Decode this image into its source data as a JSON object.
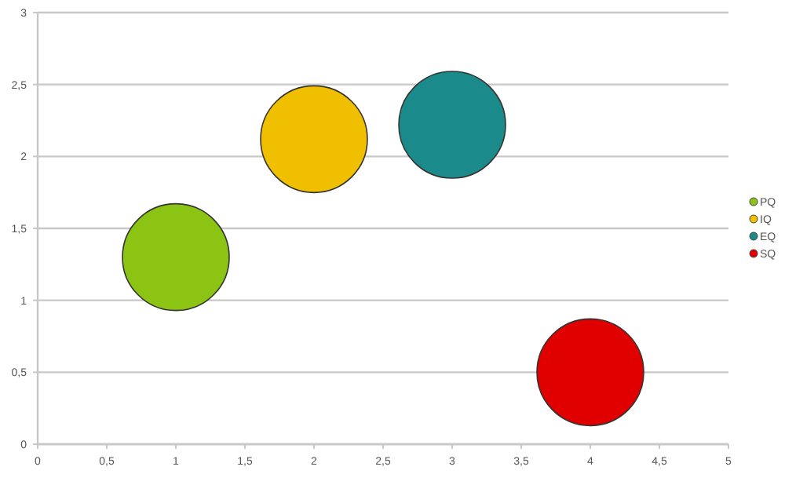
{
  "chart_data": {
    "type": "bubble",
    "xlim": [
      0,
      5
    ],
    "ylim": [
      0,
      3
    ],
    "xticks": [
      0,
      {
        "value": 0.5,
        "label": "0,5"
      },
      1,
      {
        "value": 1.5,
        "label": "1,5"
      },
      2,
      {
        "value": 2.5,
        "label": "2,5"
      },
      3,
      {
        "value": 3.5,
        "label": "3,5"
      },
      4,
      {
        "value": 4.5,
        "label": "4,5"
      },
      5
    ],
    "yticks": [
      0,
      {
        "value": 0.5,
        "label": "0,5"
      },
      1,
      {
        "value": 1.5,
        "label": "1,5"
      },
      2,
      {
        "value": 2.5,
        "label": "2,5"
      },
      3
    ],
    "grid": "y",
    "legend": "right",
    "marker": "circle",
    "series": [
      {
        "name": "PQ",
        "color": "#8cc414",
        "x": [
          1
        ],
        "values": [
          1.3
        ],
        "sizes": [
          1
        ]
      },
      {
        "name": "IQ",
        "color": "#f0c000",
        "x": [
          2
        ],
        "values": [
          2.12
        ],
        "sizes": [
          1
        ]
      },
      {
        "name": "EQ",
        "color": "#1a8a8a",
        "x": [
          3
        ],
        "values": [
          2.22
        ],
        "sizes": [
          1
        ]
      },
      {
        "name": "SQ",
        "color": "#e00000",
        "x": [
          4
        ],
        "values": [
          0.5
        ],
        "sizes": [
          1
        ]
      }
    ]
  }
}
